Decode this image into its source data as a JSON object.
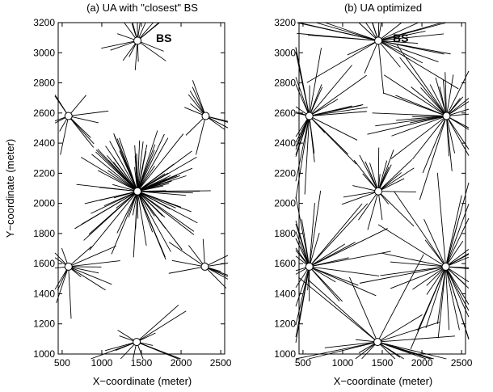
{
  "figure": {
    "shared_ylabel": "Y−coordinate (meter)"
  },
  "chart_data": [
    {
      "type": "scatter",
      "title": "(a) UA with \"closest\" BS",
      "xlabel": "X−coordinate (meter)",
      "ylabel": "Y−coordinate (meter)",
      "xlim": [
        450,
        2550
      ],
      "ylim": [
        1000,
        3200
      ],
      "xticks": [
        500,
        1000,
        1500,
        2000,
        2500
      ],
      "yticks": [
        1000,
        1200,
        1400,
        1600,
        1800,
        2000,
        2200,
        2400,
        2600,
        2800,
        3000,
        3200
      ],
      "grid": false,
      "bs_annotation": "BS",
      "base_stations": [
        {
          "x": 1450,
          "y": 3080
        },
        {
          "x": 580,
          "y": 2580
        },
        {
          "x": 2310,
          "y": 2580
        },
        {
          "x": 1450,
          "y": 2080
        },
        {
          "x": 580,
          "y": 1580
        },
        {
          "x": 2300,
          "y": 1580
        },
        {
          "x": 1440,
          "y": 1080
        }
      ],
      "line_color": "#000000",
      "marker": "open-circle"
    },
    {
      "type": "scatter",
      "title": "(b) UA optimized",
      "xlabel": "X−coordinate (meter)",
      "ylabel": "",
      "xlim": [
        450,
        2550
      ],
      "ylim": [
        1000,
        3200
      ],
      "xticks": [
        500,
        1000,
        1500,
        2000,
        2500
      ],
      "yticks": [
        1000,
        1200,
        1400,
        1600,
        1800,
        2000,
        2200,
        2400,
        2600,
        2800,
        3000,
        3200
      ],
      "grid": false,
      "bs_annotation": "BS",
      "base_stations": [
        {
          "x": 1450,
          "y": 3080
        },
        {
          "x": 580,
          "y": 2580
        },
        {
          "x": 2310,
          "y": 2580
        },
        {
          "x": 1450,
          "y": 2080
        },
        {
          "x": 580,
          "y": 1580
        },
        {
          "x": 2300,
          "y": 1580
        },
        {
          "x": 1440,
          "y": 1080
        }
      ],
      "line_color": "#000000",
      "marker": "open-circle"
    }
  ]
}
